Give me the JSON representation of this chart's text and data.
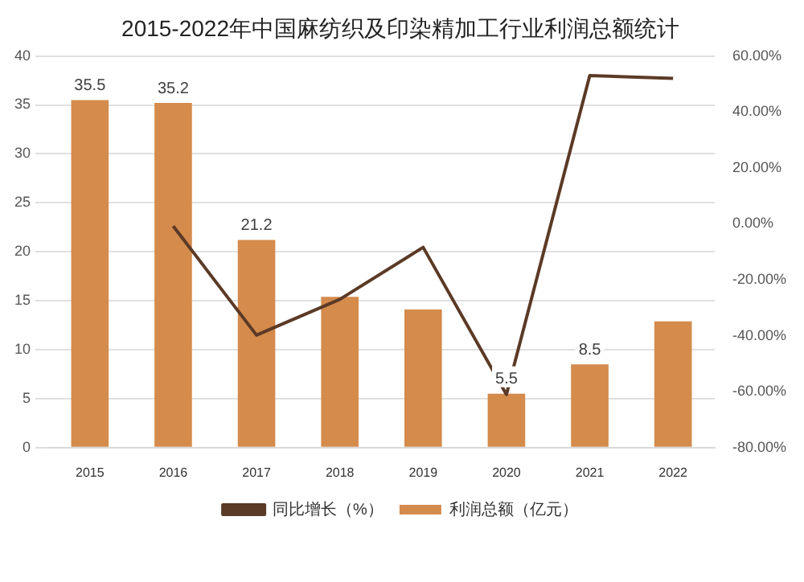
{
  "chart_data": {
    "type": "bar",
    "title": "2015-2022年中国麻纺织及印染精加工行业利润总额统计",
    "categories": [
      "2015",
      "2016",
      "2017",
      "2018",
      "2019",
      "2020",
      "2021",
      "2022"
    ],
    "series": [
      {
        "name": "利润总额（亿元）",
        "color": "#d48b4c",
        "values": [
          35.5,
          35.2,
          21.2,
          15.4,
          14.1,
          5.5,
          8.5,
          12.9
        ],
        "value_labels": [
          "35.5",
          "35.2",
          "21.2",
          null,
          null,
          "5.5",
          "8.5",
          null
        ]
      },
      {
        "name": "同比增长（%）",
        "type": "line",
        "axis": "y2",
        "color": "#5b3a26",
        "values": [
          null,
          -0.8,
          -39.8,
          -27,
          -8.4,
          -61,
          53,
          52
        ]
      }
    ],
    "ylim": [
      0,
      40
    ],
    "yticks": [
      0,
      5,
      10,
      15,
      20,
      25,
      30,
      35,
      40
    ],
    "y2lim": [
      -80,
      60
    ],
    "y2ticks": [
      {
        "value": -80,
        "label": "-80.00%"
      },
      {
        "value": -60,
        "label": "-60.00%"
      },
      {
        "value": -40,
        "label": "-40.00%"
      },
      {
        "value": -20,
        "label": "-20.00%"
      },
      {
        "value": 0,
        "label": "0.00%"
      },
      {
        "value": 20,
        "label": "20.00%"
      },
      {
        "value": 40,
        "label": "40.00%"
      },
      {
        "value": 60,
        "label": "60.00%"
      }
    ],
    "grid": "y",
    "legend": "bottom",
    "marker": "none"
  }
}
